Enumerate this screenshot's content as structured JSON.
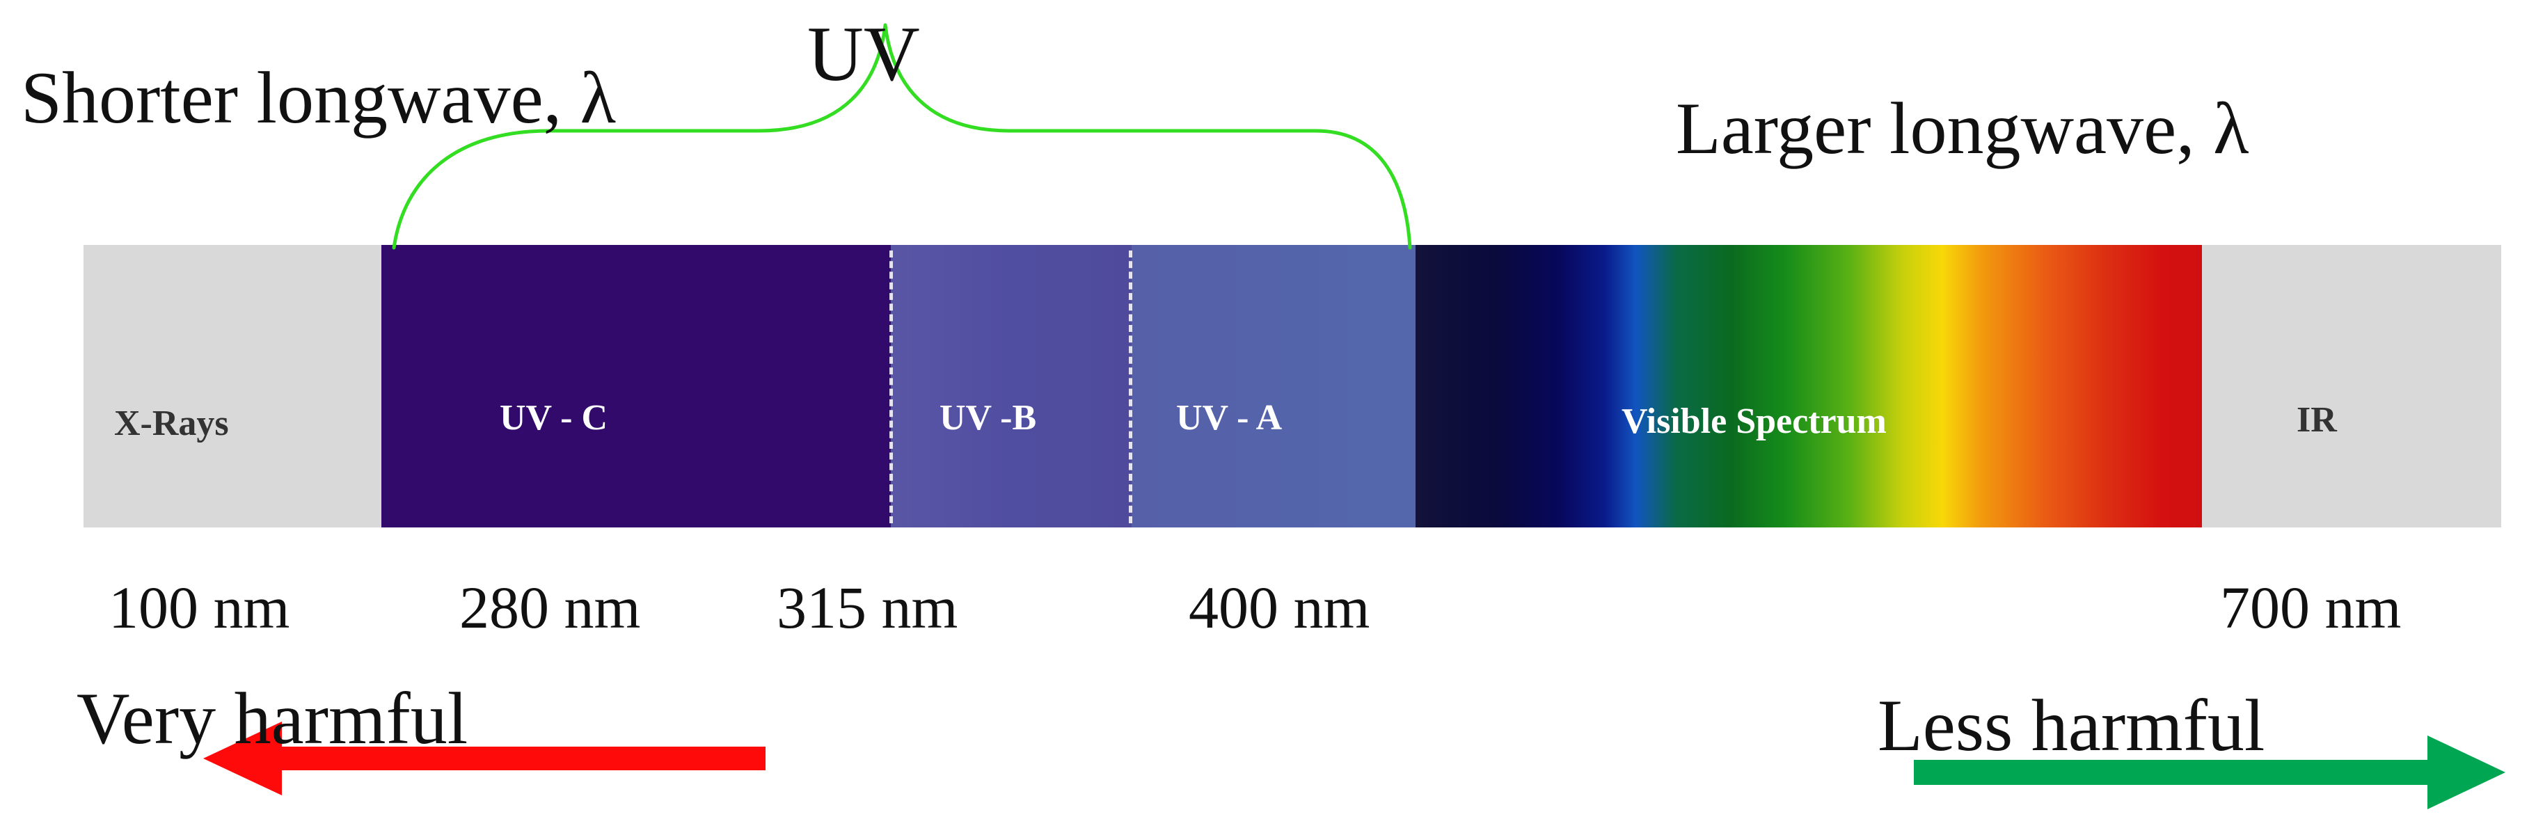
{
  "title": "UV",
  "left_caption": "Shorter longwave, λ",
  "right_caption": "Larger longwave, λ",
  "segments": {
    "xrays": "X-Rays",
    "uvc": "UV - C",
    "uvb": "UV -B",
    "uva": "UV - A",
    "visible": "Visible Spectrum",
    "ir": "IR"
  },
  "wavelengths": {
    "w100": "100 nm",
    "w280": "280 nm",
    "w315": "315 nm",
    "w400": "400 nm",
    "w700": "700 nm"
  },
  "harm": {
    "very": "Very harmful",
    "less": "Less harmful"
  },
  "colors": {
    "brace": "#33dd22",
    "very_harmful_arrow": "#ff0a0a",
    "less_harmful_arrow": "#00a651",
    "uvc": "#320a6c",
    "band_gray": "#d9d9d9"
  },
  "icons": {
    "brace": "curly-brace",
    "left_arrow": "arrow-left",
    "right_arrow": "arrow-right"
  }
}
